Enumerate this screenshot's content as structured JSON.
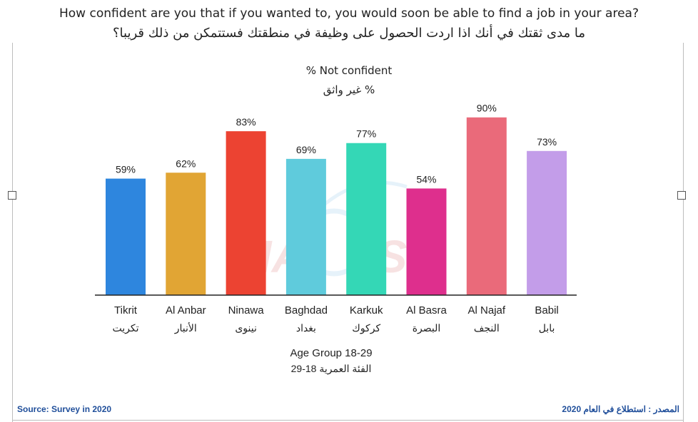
{
  "chart_data": {
    "type": "bar",
    "title": "How confident are you that if you wanted to, you would soon be able to find a job in your area?",
    "title_ar": "ما مدى ثقتك في أنك اذا اردت الحصول على وظيفة في منطقتك فستتمكن من ذلك قريبا؟",
    "ylabel": "% Not confident",
    "ylabel_ar": "% غير واثق",
    "xlabel": "Age Group 18-29",
    "xlabel_ar": "الفئة العمرية 18-29",
    "categories": [
      "Tikrit",
      "Al Anbar",
      "Ninawa",
      "Baghdad",
      "Karkuk",
      "Al Basra",
      "Al Najaf",
      "Babil"
    ],
    "categories_ar": [
      "تكريت",
      "الأنبار",
      "نينوى",
      "بغداد",
      "كركوك",
      "البصرة",
      "النجف",
      "بابل"
    ],
    "values": [
      59,
      62,
      83,
      69,
      77,
      54,
      90,
      73
    ],
    "value_labels": [
      "59%",
      "62%",
      "83%",
      "69%",
      "77%",
      "54%",
      "90%",
      "73%"
    ],
    "colors": [
      "#2e86de",
      "#e1a534",
      "#ec4332",
      "#5fcbdc",
      "#34d7b6",
      "#de2f8d",
      "#ea6a7a",
      "#c39de9"
    ],
    "ylim": [
      0,
      100
    ],
    "grid": false,
    "legend": "none"
  },
  "source": {
    "left": "Source: Survey in 2020",
    "right": "المصدر : استطلاع في العام 2020"
  }
}
